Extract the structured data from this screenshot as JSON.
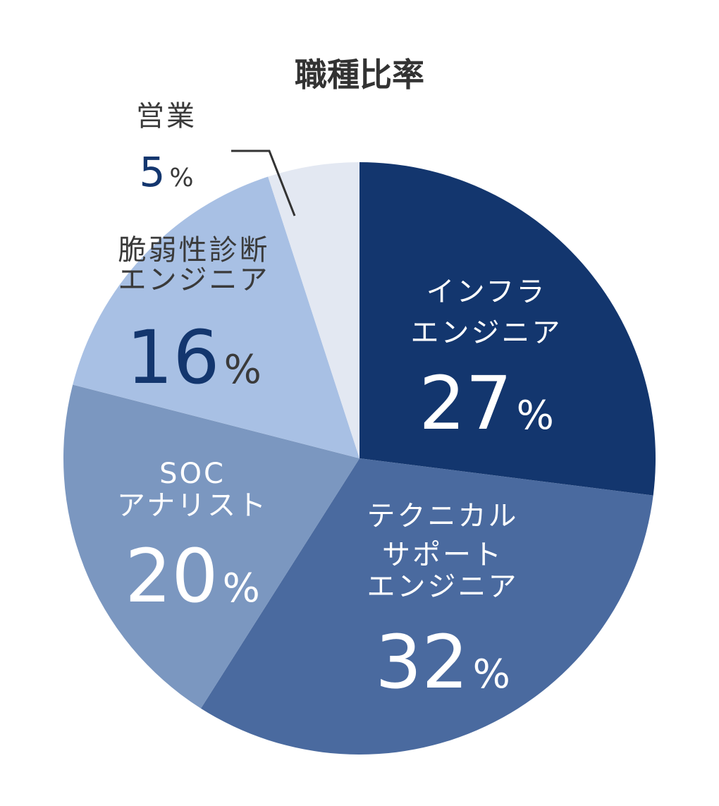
{
  "chart_data": {
    "type": "pie",
    "title": "職種比率",
    "unit": "%",
    "slices": [
      {
        "name_lines": [
          "インフラ",
          "エンジニア"
        ],
        "value": 27,
        "color": "#13366E",
        "label_color": "#FFFFFF",
        "value_color": "#FFFFFF"
      },
      {
        "name_lines": [
          "テクニカル",
          "サポート",
          "エンジニア"
        ],
        "value": 32,
        "color": "#4A6A9F",
        "label_color": "#FFFFFF",
        "value_color": "#FFFFFF"
      },
      {
        "name_lines": [
          "SOC",
          "アナリスト"
        ],
        "value": 20,
        "color": "#7B97C0",
        "label_color": "#FFFFFF",
        "value_color": "#FFFFFF"
      },
      {
        "name_lines": [
          "脆弱性診断",
          "エンジニア"
        ],
        "value": 16,
        "color": "#A8C0E4",
        "label_color": "#3A3A3A",
        "value_color": "#13366E"
      },
      {
        "name_lines": [
          "営業"
        ],
        "value": 5,
        "color": "#E3E8F2",
        "label_color": "#3A3A3A",
        "value_color": "#13366E"
      }
    ]
  }
}
